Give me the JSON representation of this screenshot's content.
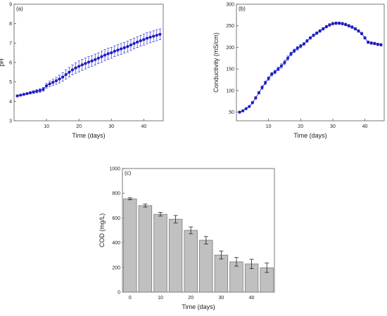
{
  "colors": {
    "line_series": "#1f1fd6",
    "bar_fill": "#c0c0c0",
    "bar_stroke": "#7a7a7a",
    "axis": "#555555"
  },
  "chart_data": [
    {
      "panel_label": "(a)",
      "type": "line",
      "xlabel": "Time (days)",
      "ylabel": "pH",
      "xlim": [
        0,
        46
      ],
      "ylim": [
        3,
        9
      ],
      "xticks": [
        10,
        20,
        30,
        40
      ],
      "yticks": [
        3,
        4,
        5,
        6,
        7,
        8,
        9
      ],
      "grid": false,
      "series": [
        {
          "marker": "circle",
          "x": [
            1,
            2,
            3,
            4,
            5,
            6,
            7,
            8,
            9,
            10,
            11,
            12,
            13,
            14,
            15,
            16,
            17,
            18,
            19,
            20,
            21,
            22,
            23,
            24,
            25,
            26,
            27,
            28,
            29,
            30,
            31,
            32,
            33,
            34,
            35,
            36,
            37,
            38,
            39,
            40,
            41,
            42,
            43,
            44,
            45
          ],
          "y": [
            4.28,
            4.32,
            4.36,
            4.4,
            4.44,
            4.48,
            4.52,
            4.56,
            4.62,
            4.8,
            4.9,
            4.98,
            5.06,
            5.15,
            5.25,
            5.38,
            5.5,
            5.62,
            5.72,
            5.8,
            5.88,
            5.95,
            6.02,
            6.08,
            6.15,
            6.22,
            6.3,
            6.38,
            6.45,
            6.5,
            6.58,
            6.64,
            6.7,
            6.76,
            6.82,
            6.9,
            6.98,
            7.05,
            7.12,
            7.18,
            7.25,
            7.3,
            7.35,
            7.4,
            7.45
          ],
          "error": [
            0.03,
            0.04,
            0.05,
            0.05,
            0.06,
            0.07,
            0.08,
            0.09,
            0.1,
            0.12,
            0.14,
            0.16,
            0.18,
            0.2,
            0.22,
            0.24,
            0.25,
            0.26,
            0.27,
            0.28,
            0.28,
            0.28,
            0.28,
            0.28,
            0.28,
            0.28,
            0.28,
            0.28,
            0.28,
            0.28,
            0.28,
            0.28,
            0.28,
            0.28,
            0.28,
            0.28,
            0.28,
            0.28,
            0.28,
            0.28,
            0.28,
            0.28,
            0.28,
            0.28,
            0.28
          ]
        }
      ]
    },
    {
      "panel_label": "(b)",
      "type": "line",
      "xlabel": "Time (days)",
      "ylabel": "Conductivity (mS/cm)",
      "xlim": [
        0,
        46
      ],
      "ylim": [
        30,
        300
      ],
      "xticks": [
        10,
        20,
        30,
        40
      ],
      "yticks": [
        50,
        100,
        150,
        200,
        250,
        300
      ],
      "grid": false,
      "series": [
        {
          "marker": "circle",
          "x": [
            1,
            2,
            3,
            4,
            5,
            6,
            7,
            8,
            9,
            10,
            11,
            12,
            13,
            14,
            15,
            16,
            17,
            18,
            19,
            20,
            21,
            22,
            23,
            24,
            25,
            26,
            27,
            28,
            29,
            30,
            31,
            32,
            33,
            34,
            35,
            36,
            37,
            38,
            39,
            40,
            41,
            42,
            43,
            44,
            45
          ],
          "y": [
            50,
            53,
            58,
            63,
            72,
            83,
            95,
            107,
            118,
            128,
            138,
            143,
            150,
            157,
            165,
            175,
            185,
            192,
            198,
            203,
            208,
            215,
            222,
            228,
            233,
            238,
            243,
            248,
            252,
            255,
            256,
            256,
            255,
            253,
            250,
            247,
            243,
            238,
            232,
            222,
            212,
            210,
            209,
            207,
            206
          ],
          "error": [
            2,
            2,
            2,
            2,
            3,
            3,
            3,
            4,
            4,
            4,
            4,
            4,
            4,
            5,
            5,
            5,
            4,
            4,
            4,
            4,
            3,
            3,
            3,
            3,
            3,
            3,
            3,
            3,
            3,
            3,
            3,
            3,
            3,
            3,
            3,
            3,
            3,
            3,
            3,
            3,
            3,
            3,
            3,
            3,
            3
          ]
        }
      ]
    },
    {
      "panel_label": "(c)",
      "type": "bar",
      "xlabel": "Time (days)",
      "ylabel": "COD (mg/L)",
      "xlim": [
        -2.5,
        47.5
      ],
      "ylim": [
        0,
        1000
      ],
      "xticks": [
        0,
        10,
        20,
        30,
        40
      ],
      "yticks": [
        0,
        200,
        400,
        600,
        800,
        1000
      ],
      "grid": false,
      "x": [
        0,
        5,
        10,
        15,
        20,
        25,
        30,
        35,
        40,
        45
      ],
      "values": [
        755,
        700,
        630,
        590,
        500,
        420,
        300,
        245,
        228,
        197
      ],
      "error": [
        8,
        12,
        15,
        30,
        28,
        30,
        32,
        35,
        38,
        38
      ]
    }
  ]
}
